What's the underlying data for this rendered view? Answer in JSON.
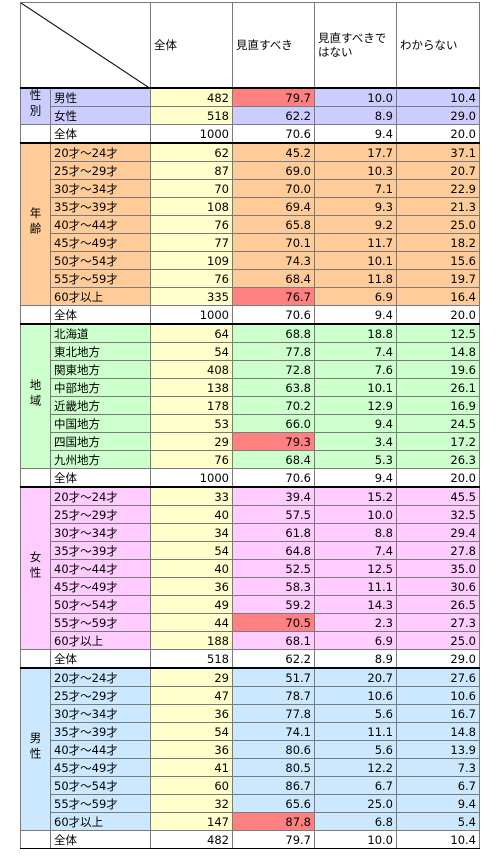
{
  "header": {
    "columns": [
      "全体",
      "見直すべき",
      "見直すべきではない",
      "わからない"
    ]
  },
  "highlight_color": "#ff8080",
  "n_color": "#ffffcc",
  "sections": [
    {
      "label": "性別",
      "color": "#ccccff",
      "rows": [
        {
          "label": "男性",
          "cells": [
            "482",
            "79.7",
            "10.0",
            "10.4"
          ],
          "highlight_column": 1
        },
        {
          "label": "女性",
          "cells": [
            "518",
            "62.2",
            "8.9",
            "29.0"
          ]
        }
      ],
      "total": {
        "label": "全体",
        "cells": [
          "1000",
          "70.6",
          "9.4",
          "20.0"
        ]
      }
    },
    {
      "label": "年齢",
      "color": "#ffcc99",
      "rows": [
        {
          "label": "20才～24才",
          "cells": [
            "62",
            "45.2",
            "17.7",
            "37.1"
          ]
        },
        {
          "label": "25才～29才",
          "cells": [
            "87",
            "69.0",
            "10.3",
            "20.7"
          ]
        },
        {
          "label": "30才～34才",
          "cells": [
            "70",
            "70.0",
            "7.1",
            "22.9"
          ]
        },
        {
          "label": "35才～39才",
          "cells": [
            "108",
            "69.4",
            "9.3",
            "21.3"
          ]
        },
        {
          "label": "40才～44才",
          "cells": [
            "76",
            "65.8",
            "9.2",
            "25.0"
          ]
        },
        {
          "label": "45才～49才",
          "cells": [
            "77",
            "70.1",
            "11.7",
            "18.2"
          ]
        },
        {
          "label": "50才～54才",
          "cells": [
            "109",
            "74.3",
            "10.1",
            "15.6"
          ]
        },
        {
          "label": "55才～59才",
          "cells": [
            "76",
            "68.4",
            "11.8",
            "19.7"
          ]
        },
        {
          "label": "60才以上",
          "cells": [
            "335",
            "76.7",
            "6.9",
            "16.4"
          ],
          "highlight_column": 1
        }
      ],
      "total": {
        "label": "全体",
        "cells": [
          "1000",
          "70.6",
          "9.4",
          "20.0"
        ]
      }
    },
    {
      "label": "地域",
      "color": "#ccffcc",
      "rows": [
        {
          "label": "北海道",
          "cells": [
            "64",
            "68.8",
            "18.8",
            "12.5"
          ]
        },
        {
          "label": "東北地方",
          "cells": [
            "54",
            "77.8",
            "7.4",
            "14.8"
          ]
        },
        {
          "label": "関東地方",
          "cells": [
            "408",
            "72.8",
            "7.6",
            "19.6"
          ]
        },
        {
          "label": "中部地方",
          "cells": [
            "138",
            "63.8",
            "10.1",
            "26.1"
          ]
        },
        {
          "label": "近畿地方",
          "cells": [
            "178",
            "70.2",
            "12.9",
            "16.9"
          ]
        },
        {
          "label": "中国地方",
          "cells": [
            "53",
            "66.0",
            "9.4",
            "24.5"
          ]
        },
        {
          "label": "四国地方",
          "cells": [
            "29",
            "79.3",
            "3.4",
            "17.2"
          ],
          "highlight_column": 1
        },
        {
          "label": "九州地方",
          "cells": [
            "76",
            "68.4",
            "5.3",
            "26.3"
          ]
        }
      ],
      "total": {
        "label": "全体",
        "cells": [
          "1000",
          "70.6",
          "9.4",
          "20.0"
        ]
      }
    },
    {
      "label": "女性",
      "color": "#ffccff",
      "rows": [
        {
          "label": "20才～24才",
          "cells": [
            "33",
            "39.4",
            "15.2",
            "45.5"
          ]
        },
        {
          "label": "25才～29才",
          "cells": [
            "40",
            "57.5",
            "10.0",
            "32.5"
          ]
        },
        {
          "label": "30才～34才",
          "cells": [
            "34",
            "61.8",
            "8.8",
            "29.4"
          ]
        },
        {
          "label": "35才～39才",
          "cells": [
            "54",
            "64.8",
            "7.4",
            "27.8"
          ]
        },
        {
          "label": "40才～44才",
          "cells": [
            "40",
            "52.5",
            "12.5",
            "35.0"
          ]
        },
        {
          "label": "45才～49才",
          "cells": [
            "36",
            "58.3",
            "11.1",
            "30.6"
          ]
        },
        {
          "label": "50才～54才",
          "cells": [
            "49",
            "59.2",
            "14.3",
            "26.5"
          ]
        },
        {
          "label": "55才～59才",
          "cells": [
            "44",
            "70.5",
            "2.3",
            "27.3"
          ],
          "highlight_column": 1
        },
        {
          "label": "60才以上",
          "cells": [
            "188",
            "68.1",
            "6.9",
            "25.0"
          ]
        }
      ],
      "total": {
        "label": "全体",
        "cells": [
          "518",
          "62.2",
          "8.9",
          "29.0"
        ]
      }
    },
    {
      "label": "男性",
      "color": "#cce8ff",
      "rows": [
        {
          "label": "20才～24才",
          "cells": [
            "29",
            "51.7",
            "20.7",
            "27.6"
          ]
        },
        {
          "label": "25才～29才",
          "cells": [
            "47",
            "78.7",
            "10.6",
            "10.6"
          ]
        },
        {
          "label": "30才～34才",
          "cells": [
            "36",
            "77.8",
            "5.6",
            "16.7"
          ]
        },
        {
          "label": "35才～39才",
          "cells": [
            "54",
            "74.1",
            "11.1",
            "14.8"
          ]
        },
        {
          "label": "40才～44才",
          "cells": [
            "36",
            "80.6",
            "5.6",
            "13.9"
          ]
        },
        {
          "label": "45才～49才",
          "cells": [
            "41",
            "80.5",
            "12.2",
            "7.3"
          ]
        },
        {
          "label": "50才～54才",
          "cells": [
            "60",
            "86.7",
            "6.7",
            "6.7"
          ]
        },
        {
          "label": "55才～59才",
          "cells": [
            "32",
            "65.6",
            "25.0",
            "9.4"
          ]
        },
        {
          "label": "60才以上",
          "cells": [
            "147",
            "87.8",
            "6.8",
            "5.4"
          ],
          "highlight_column": 1
        }
      ],
      "total": {
        "label": "全体",
        "cells": [
          "482",
          "79.7",
          "10.0",
          "10.4"
        ]
      }
    }
  ]
}
